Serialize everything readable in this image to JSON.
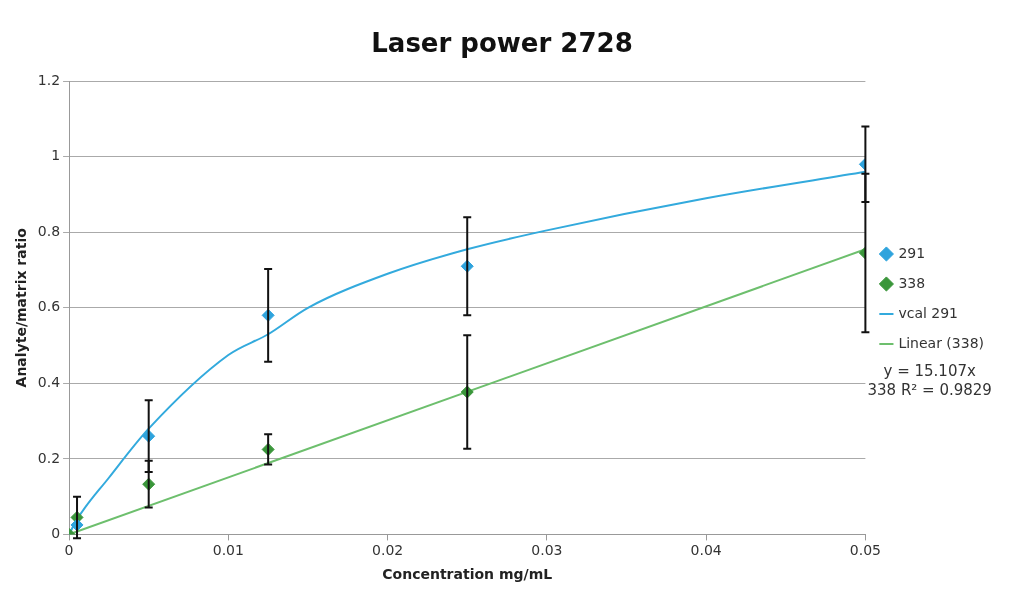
{
  "chart_data": {
    "type": "scatter",
    "title": "Laser power 2728",
    "xlabel": "Concentration mg/mL",
    "ylabel": "Analyte/matrix ratio",
    "xlim": [
      0,
      0.05
    ],
    "xticks": [
      0,
      0.01,
      0.02,
      0.03,
      0.04,
      0.05
    ],
    "ylim": [
      0,
      1.2
    ],
    "yticks": [
      0,
      0.2,
      0.4,
      0.6,
      0.8,
      1,
      1.2
    ],
    "grid": "y",
    "legend": "right",
    "marker": "diamond",
    "series": [
      {
        "name": "291",
        "type": "scatter",
        "color": "#2ea3dd",
        "x": [
          0.0005,
          0.005,
          0.0125,
          0.025,
          0.05
        ],
        "values": [
          0.025,
          0.26,
          0.58,
          0.71,
          0.98
        ],
        "errors": [
          null,
          0.095,
          0.123,
          0.13,
          0.1
        ]
      },
      {
        "name": "338",
        "type": "scatter",
        "color": "#3a963a",
        "x": [
          0,
          0.0005,
          0.005,
          0.0125,
          0.025,
          0.05
        ],
        "values": [
          0,
          0.045,
          0.133,
          0.225,
          0.377,
          0.745
        ],
        "errors": [
          null,
          0.055,
          0.062,
          0.04,
          0.15,
          0.21
        ]
      },
      {
        "name": "vcal 291",
        "type": "line",
        "marker": "none",
        "color": "#33aadd",
        "x": [
          0,
          0.0005,
          0.0025,
          0.005,
          0.01,
          0.0125,
          0.015,
          0.02,
          0.025,
          0.03,
          0.04,
          0.05
        ],
        "values": [
          0,
          0.04,
          0.15,
          0.28,
          0.475,
          0.53,
          0.6,
          0.69,
          0.755,
          0.805,
          0.89,
          0.96
        ]
      },
      {
        "name": "Linear (338)",
        "type": "line",
        "marker": "none",
        "color": "#6dbf6d",
        "x": [
          0,
          0.05
        ],
        "values": [
          0,
          0.755
        ]
      }
    ],
    "annotations": [
      "y = 15.107x",
      "338 R² = 0.9829"
    ]
  }
}
